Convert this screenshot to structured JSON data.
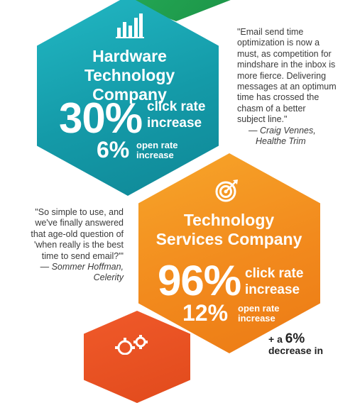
{
  "blocks": {
    "hardware": {
      "title_line1": "Hardware",
      "title_line2": "Technology Company",
      "click_value": "30%",
      "click_label_1": "click rate",
      "click_label_2": "increase",
      "open_value": "6%",
      "open_label_1": "open rate",
      "open_label_2": "increase",
      "icon": "bar-chart-icon",
      "color": "#149aa8"
    },
    "services": {
      "title_line1": "Technology",
      "title_line2": "Services Company",
      "click_value": "96%",
      "click_label_1": "click rate",
      "click_label_2": "increase",
      "open_value": "12%",
      "open_label_1": "open rate",
      "open_label_2": "increase",
      "icon": "target-icon",
      "color": "#f28a1d"
    },
    "bottom": {
      "icon": "gears-icon",
      "color": "#e14a1c",
      "note_prefix": "+ a",
      "note_value": "6%",
      "note_line2": "decrease in"
    }
  },
  "quotes": {
    "right": {
      "lines": [
        "\"Email send time",
        "optimization is now a",
        "must, as competition for",
        "mindshare in the inbox is",
        "more fierce. Delivering",
        "messages at an optimum",
        "time has crossed the",
        "chasm of a better",
        "subject line.\""
      ],
      "attribution_1": "— Craig Vennes,",
      "attribution_2": "Healthe Trim"
    },
    "left": {
      "lines": [
        "\"So simple to use, and",
        "we've finally answered",
        "that age-old question of",
        "'when really is the best",
        "time to send  email?'\""
      ],
      "attribution_1": "— Sommer Hoffman,",
      "attribution_2": "Celerity"
    }
  }
}
